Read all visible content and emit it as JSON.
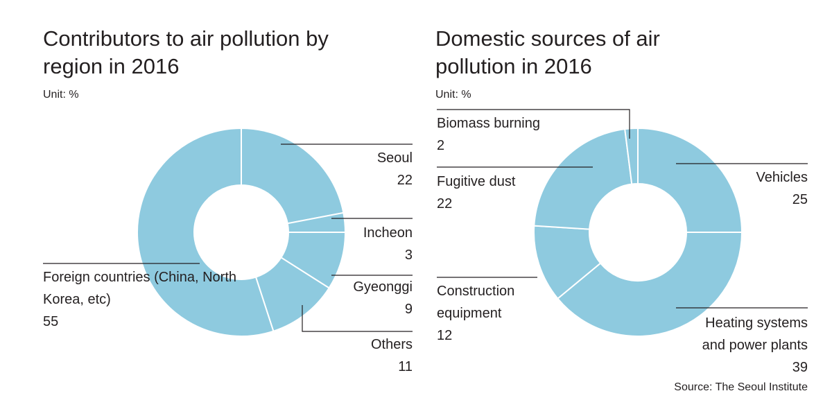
{
  "chart_data": [
    {
      "type": "donut",
      "title": "Contributors to air pollution by region in 2016",
      "unit": "Unit: %",
      "color": "#8ecadf",
      "categories": [
        "Seoul",
        "Incheon",
        "Gyeonggi",
        "Others",
        "Foreign countries (China, North Korea, etc)"
      ],
      "values": [
        22,
        3,
        9,
        11,
        55
      ]
    },
    {
      "type": "donut",
      "title": "Domestic sources of air pollution in 2016",
      "unit": "Unit: %",
      "color": "#8ecadf",
      "categories": [
        "Vehicles",
        "Heating systems and power plants",
        "Construction equipment",
        "Fugitive dust",
        "Biomass burning"
      ],
      "values": [
        25,
        39,
        12,
        22,
        2
      ]
    }
  ],
  "source": "Source: The Seoul Institute"
}
